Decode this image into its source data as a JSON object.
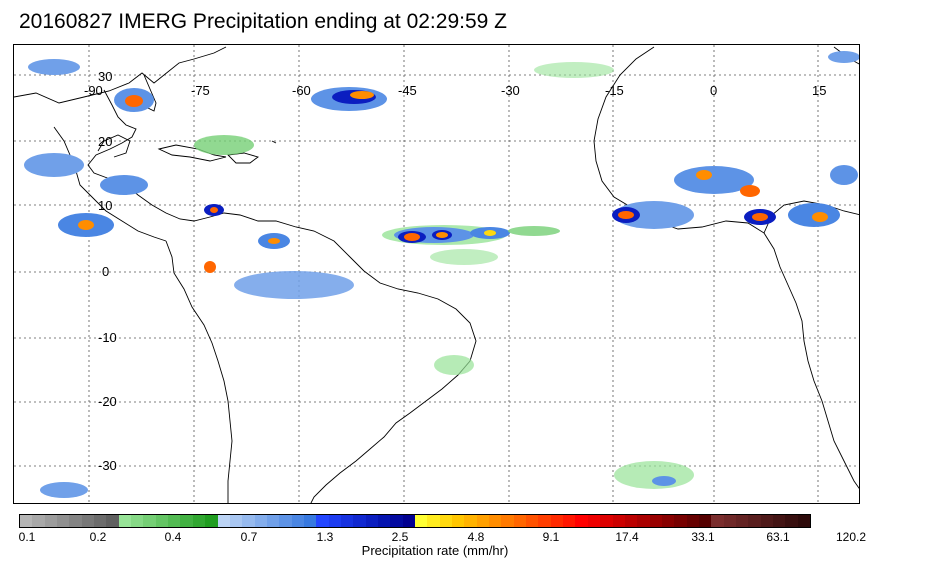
{
  "title": "20160827 IMERG Precipitation ending at 02:29:59 Z",
  "map": {
    "lon_labels": [
      "-90",
      "-75",
      "-60",
      "-45",
      "-30",
      "-15",
      "0",
      "15"
    ],
    "lat_labels": [
      "30",
      "20",
      "10",
      "0",
      "-10",
      "-20",
      "-30"
    ],
    "land_color": "#ffffff",
    "coast_color": "#000000",
    "grid_color": "#555555"
  },
  "colorbar": {
    "tick_labels": [
      "0.1",
      "0.2",
      "0.4",
      "0.7",
      "1.3",
      "2.5",
      "4.8",
      "9.1",
      "17.4",
      "33.1",
      "63.1",
      "120.2"
    ],
    "label": "Precipitation rate (mm/hr)",
    "colors": [
      "#b5b5b5",
      "#a8a8a8",
      "#9c9c9c",
      "#909090",
      "#848484",
      "#787878",
      "#6c6c6c",
      "#606060",
      "#97e397",
      "#86d986",
      "#75cf75",
      "#64c564",
      "#53bb53",
      "#42b142",
      "#31a731",
      "#209d20",
      "#bcd4f5",
      "#a9c7f2",
      "#96baef",
      "#83adec",
      "#70a0e9",
      "#5d93e6",
      "#4a86e3",
      "#3779e0",
      "#2346ff",
      "#1d3cf0",
      "#1732e0",
      "#1128d0",
      "#0b1ec0",
      "#0514b0",
      "#030aa0",
      "#010090",
      "#ffff33",
      "#ffec1f",
      "#ffd90f",
      "#ffc600",
      "#ffb300",
      "#ffa000",
      "#ff8d00",
      "#ff7a00",
      "#ff6600",
      "#ff5200",
      "#ff3e00",
      "#ff2a00",
      "#ff1600",
      "#ff0000",
      "#ee0000",
      "#dd0000",
      "#cc0000",
      "#bb0000",
      "#aa0000",
      "#990000",
      "#880000",
      "#770000",
      "#660000",
      "#550000",
      "#7a2d2d",
      "#6f2828",
      "#642323",
      "#591e1e",
      "#4e1919",
      "#431414",
      "#380f0f",
      "#2d0a0a"
    ]
  }
}
